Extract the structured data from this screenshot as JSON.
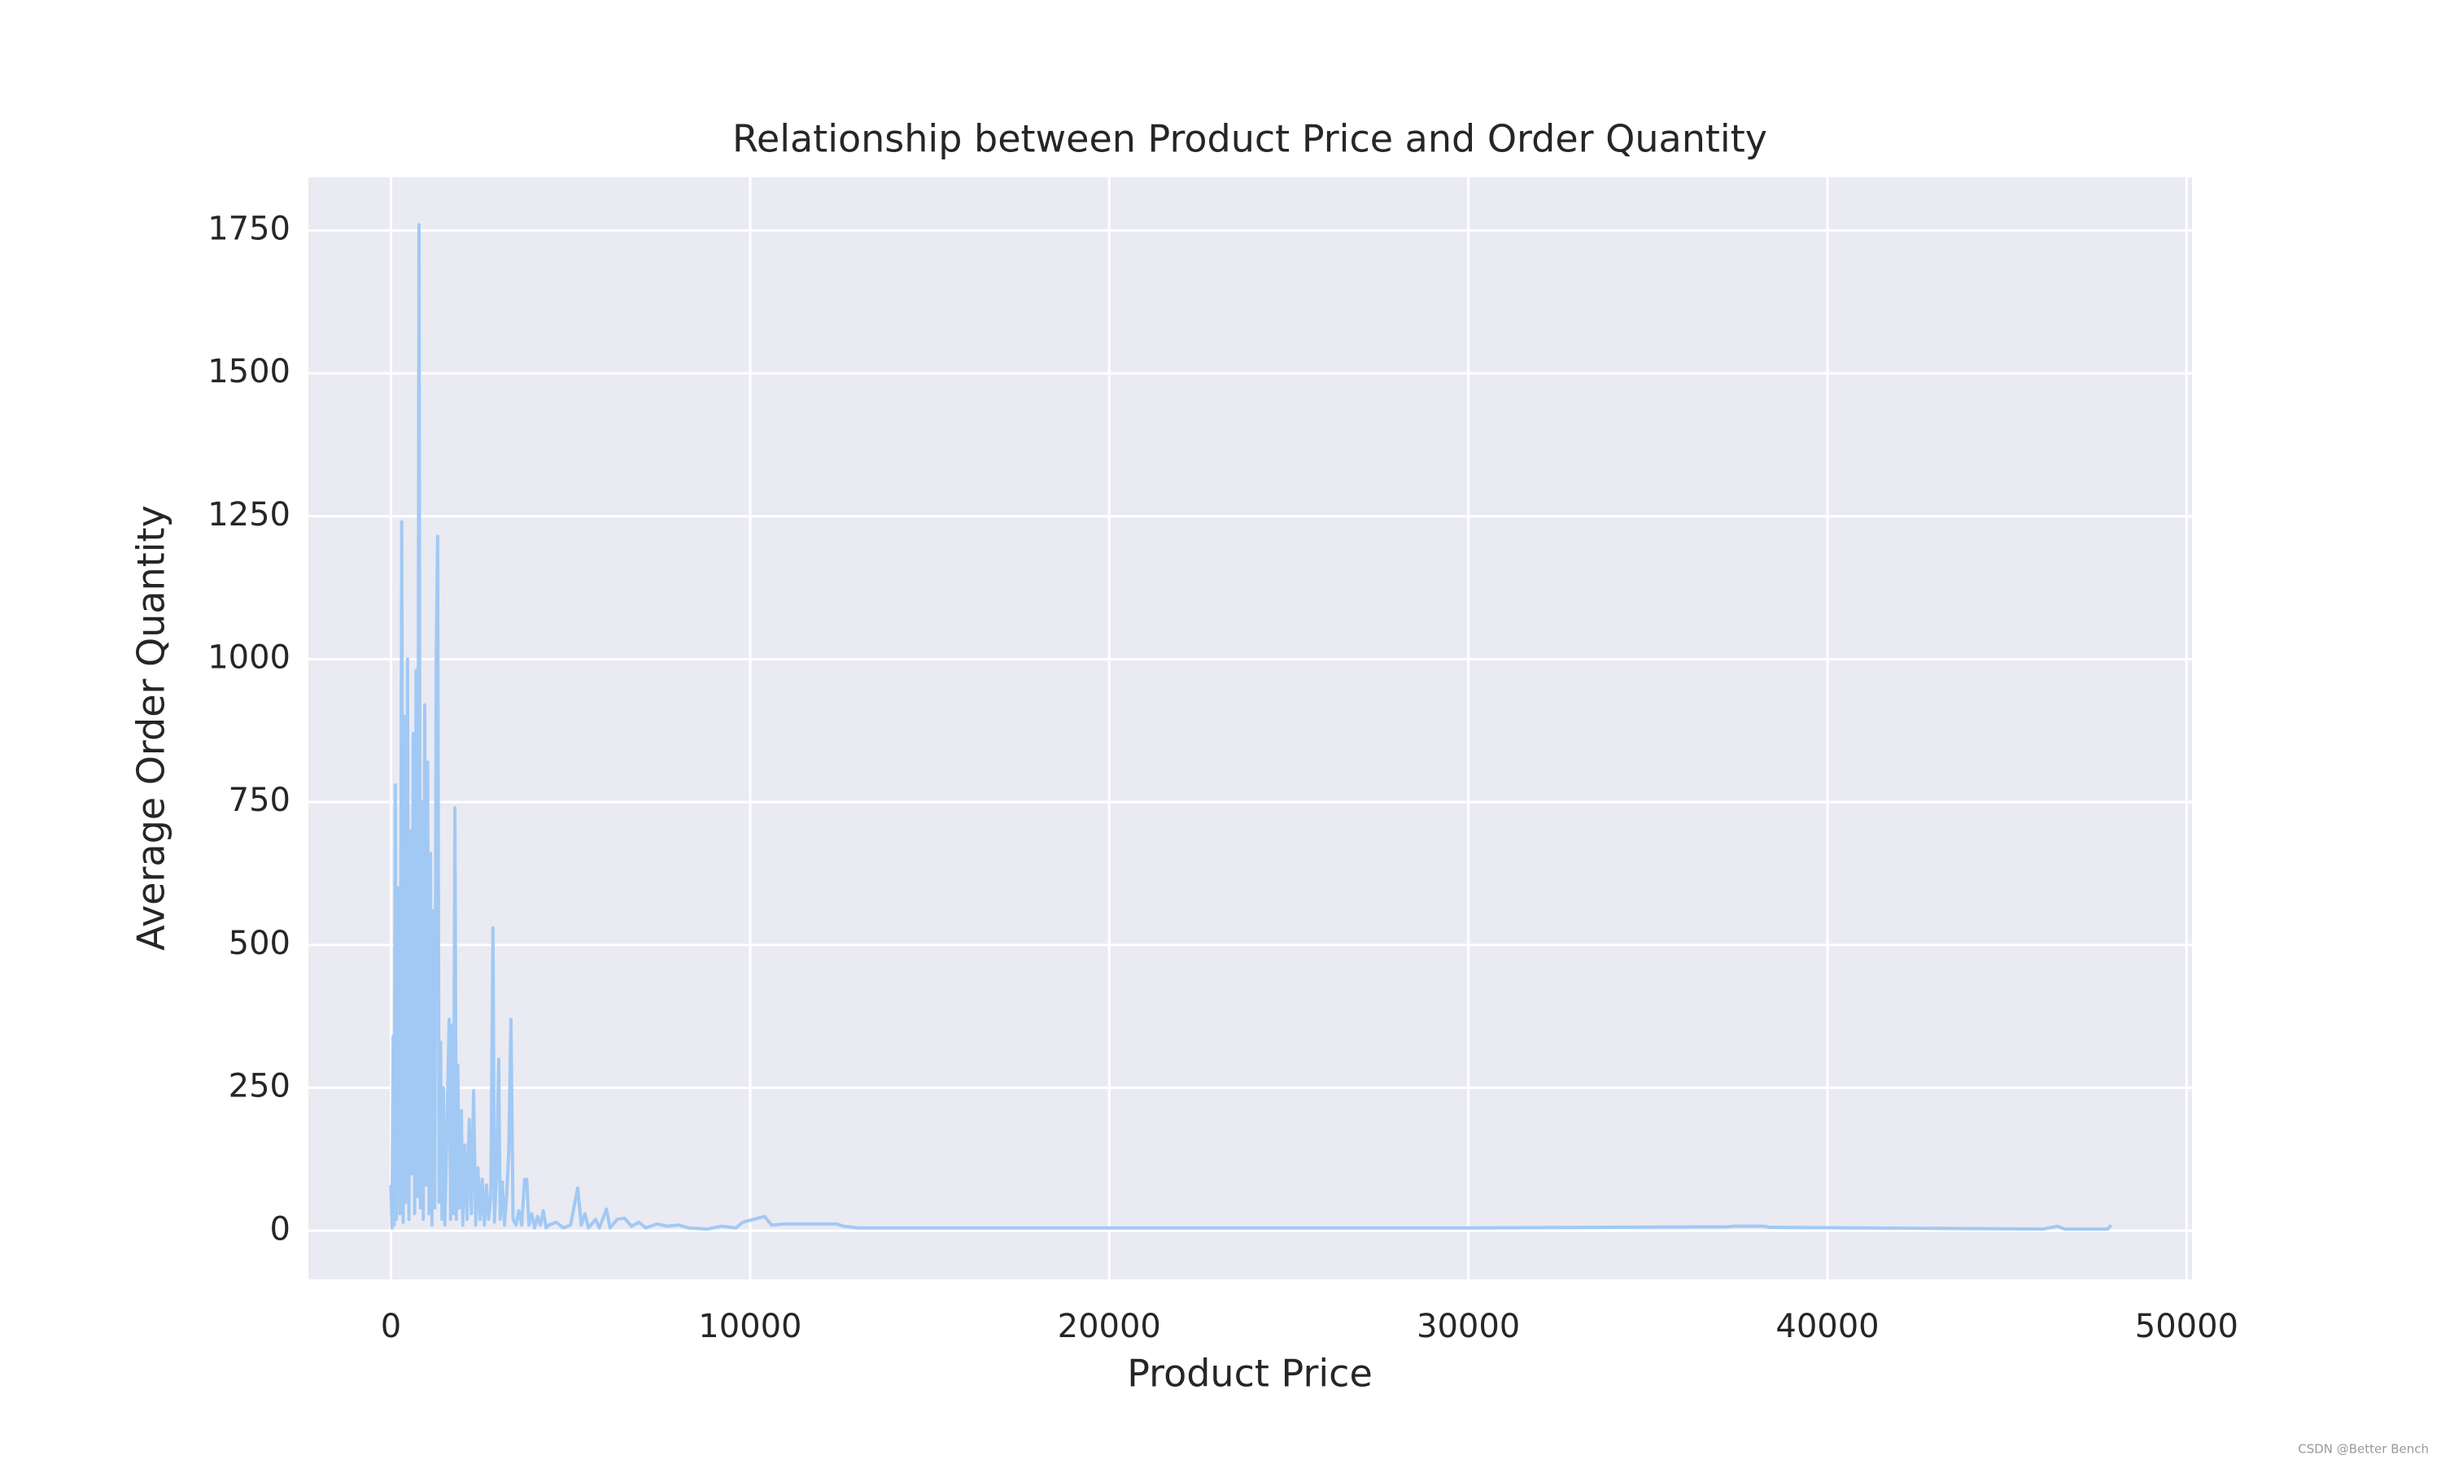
{
  "chart_data": {
    "type": "line",
    "title": "Relationship between Product Price and Order Quantity",
    "x_label": "Product Price",
    "y_label": "Average Order Quantity",
    "watermark": "CSDN @Better Bench",
    "color": "#a1c9f4",
    "background": "#eaeaf2",
    "grid": true,
    "xlim": [
      -2300,
      50150
    ],
    "ylim": [
      -85,
      1843
    ],
    "xticks": [
      0,
      10000,
      20000,
      30000,
      40000,
      50000
    ],
    "yticks": [
      0,
      250,
      500,
      750,
      1000,
      1250,
      1500,
      1750
    ],
    "x": [
      0,
      30,
      60,
      90,
      120,
      150,
      200,
      250,
      300,
      340,
      380,
      420,
      460,
      500,
      540,
      580,
      620,
      660,
      700,
      740,
      780,
      820,
      860,
      900,
      940,
      980,
      1020,
      1060,
      1100,
      1140,
      1180,
      1220,
      1260,
      1300,
      1340,
      1380,
      1420,
      1460,
      1500,
      1560,
      1620,
      1660,
      1700,
      1740,
      1780,
      1820,
      1860,
      1900,
      1960,
      2000,
      2060,
      2120,
      2180,
      2240,
      2300,
      2360,
      2420,
      2480,
      2540,
      2600,
      2660,
      2720,
      2780,
      2840,
      2880,
      2940,
      3000,
      3040,
      3100,
      3160,
      3220,
      3280,
      3340,
      3400,
      3480,
      3560,
      3640,
      3720,
      3780,
      3840,
      3920,
      4000,
      4080,
      4160,
      4240,
      4320,
      4400,
      4600,
      4800,
      5000,
      5200,
      5300,
      5400,
      5500,
      5700,
      5800,
      6000,
      6100,
      6300,
      6500,
      6700,
      6900,
      7100,
      7400,
      7700,
      8000,
      8300,
      8800,
      9200,
      9600,
      9800,
      10400,
      10600,
      11000,
      12400,
      12600,
      13000,
      20000,
      30000,
      37200,
      37400,
      38200,
      38400,
      46000,
      46400,
      46600,
      47800,
      47900
    ],
    "values": [
      80,
      5,
      340,
      10,
      780,
      20,
      600,
      30,
      1240,
      15,
      900,
      50,
      1000,
      20,
      700,
      100,
      870,
      30,
      980,
      60,
      1760,
      40,
      750,
      20,
      920,
      80,
      820,
      30,
      660,
      10,
      560,
      40,
      1000,
      1215,
      50,
      330,
      20,
      250,
      10,
      180,
      370,
      20,
      360,
      30,
      740,
      20,
      290,
      40,
      210,
      10,
      150,
      20,
      195,
      30,
      245,
      10,
      110,
      20,
      90,
      10,
      80,
      20,
      60,
      530,
      15,
      100,
      300,
      20,
      85,
      10,
      60,
      140,
      370,
      20,
      10,
      35,
      10,
      90,
      90,
      10,
      30,
      5,
      25,
      10,
      35,
      5,
      10,
      15,
      5,
      10,
      75,
      10,
      30,
      5,
      20,
      5,
      38,
      5,
      20,
      22,
      8,
      15,
      5,
      12,
      8,
      10,
      5,
      3,
      8,
      5,
      15,
      25,
      10,
      12,
      12,
      8,
      5,
      5,
      5,
      7,
      8,
      8,
      6,
      3,
      8,
      3,
      3,
      10
    ]
  }
}
